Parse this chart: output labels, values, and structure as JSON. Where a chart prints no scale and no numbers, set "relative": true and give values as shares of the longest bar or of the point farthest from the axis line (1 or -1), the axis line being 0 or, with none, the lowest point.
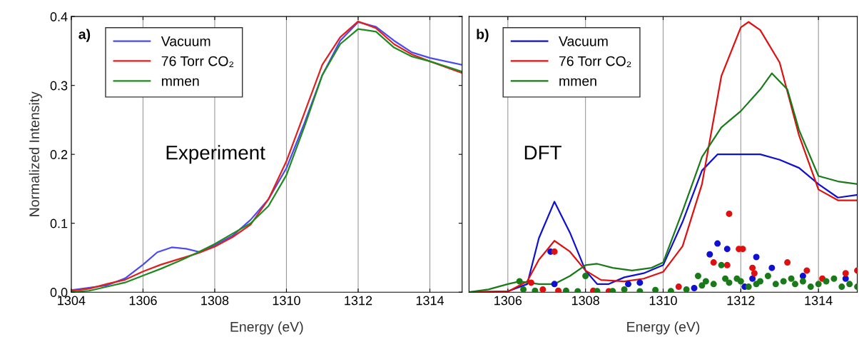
{
  "chart_data": [
    {
      "type": "line",
      "xlabel": "Energy (eV)",
      "ylabel": "Normalized Intensity",
      "annotations": [
        "a)",
        "Experiment"
      ],
      "xlim": [
        1304,
        1314.9
      ],
      "ylim": [
        0,
        0.4
      ],
      "xticks": [
        1304,
        1306,
        1308,
        1310,
        1312,
        1314
      ],
      "yticks": [
        {
          "value": 0,
          "label": "0.0"
        },
        0.1,
        0.2,
        0.3,
        0.4
      ],
      "grid": "x",
      "legend": "top left",
      "series": [
        {
          "name": "Vacuum",
          "color": "#4b4bf0",
          "x": [
            1304,
            1305,
            1305.5,
            1306,
            1306.4,
            1306.8,
            1307.2,
            1307.6,
            1308,
            1308.5,
            1309,
            1309.5,
            1310,
            1310.5,
            1311,
            1311.5,
            1312,
            1312.5,
            1313,
            1313.5,
            1314,
            1314.9
          ],
          "values": [
            0.003,
            0.01,
            0.02,
            0.04,
            0.058,
            0.065,
            0.063,
            0.058,
            0.068,
            0.082,
            0.105,
            0.135,
            0.18,
            0.245,
            0.315,
            0.365,
            0.392,
            0.385,
            0.365,
            0.348,
            0.34,
            0.33
          ]
        },
        {
          "name": "76 Torr CO₂",
          "color": "#e02020",
          "x": [
            1304,
            1304.5,
            1305,
            1305.5,
            1306,
            1306.5,
            1307,
            1307.5,
            1308,
            1308.5,
            1309,
            1309.5,
            1310,
            1310.5,
            1311,
            1311.5,
            1312,
            1312.5,
            1313,
            1313.5,
            1314,
            1314.9
          ],
          "values": [
            0.002,
            0.005,
            0.012,
            0.018,
            0.03,
            0.04,
            0.048,
            0.056,
            0.066,
            0.08,
            0.098,
            0.135,
            0.19,
            0.26,
            0.33,
            0.37,
            0.393,
            0.383,
            0.36,
            0.345,
            0.335,
            0.318
          ]
        },
        {
          "name": "mmen",
          "color": "#1f8a1f",
          "x": [
            1304,
            1304.5,
            1305,
            1305.5,
            1306,
            1306.5,
            1307,
            1307.5,
            1308,
            1308.5,
            1309,
            1309.5,
            1310,
            1310.5,
            1311,
            1311.5,
            1312,
            1312.5,
            1313,
            1313.5,
            1314,
            1314.9
          ],
          "values": [
            0.0,
            0.002,
            0.008,
            0.014,
            0.024,
            0.034,
            0.045,
            0.057,
            0.07,
            0.085,
            0.1,
            0.125,
            0.17,
            0.24,
            0.315,
            0.36,
            0.382,
            0.378,
            0.355,
            0.342,
            0.335,
            0.32
          ]
        }
      ]
    },
    {
      "type": "line",
      "xlabel": "Energy (eV)",
      "annotations": [
        "b)",
        "DFT"
      ],
      "relative": true,
      "xlim": [
        1305,
        1315
      ],
      "xticks": [
        1306,
        1308,
        1310,
        1312,
        1314
      ],
      "grid": "x",
      "legend": "top left",
      "tick_labels": "x",
      "series": [
        {
          "name": "Vacuum",
          "color": "#1010d0",
          "x": [
            1305,
            1306,
            1306.5,
            1306.8,
            1307.2,
            1307.6,
            1308,
            1308.3,
            1308.6,
            1309,
            1309.5,
            1310,
            1310.5,
            1311,
            1311.4,
            1312,
            1312.5,
            1313,
            1313.5,
            1314,
            1314.5,
            1315
          ],
          "values": [
            0,
            0.003,
            0.03,
            0.2,
            0.335,
            0.22,
            0.08,
            0.03,
            0.03,
            0.055,
            0.07,
            0.1,
            0.26,
            0.45,
            0.51,
            0.51,
            0.51,
            0.49,
            0.46,
            0.4,
            0.35,
            0.36
          ]
        },
        {
          "name": "76 Torr CO₂",
          "color": "#e01010",
          "x": [
            1305,
            1306,
            1306.5,
            1306.8,
            1307.2,
            1307.6,
            1308,
            1308.4,
            1309,
            1309.5,
            1310,
            1310.5,
            1311,
            1311.5,
            1312,
            1312.2,
            1312.5,
            1313,
            1313.5,
            1314,
            1314.5,
            1315
          ],
          "values": [
            0,
            0.002,
            0.04,
            0.12,
            0.19,
            0.15,
            0.08,
            0.045,
            0.04,
            0.05,
            0.075,
            0.17,
            0.4,
            0.8,
            0.98,
            1.0,
            0.97,
            0.85,
            0.58,
            0.38,
            0.34,
            0.34
          ]
        },
        {
          "name": "mmen",
          "color": "#1a7a1a",
          "x": [
            1305,
            1305.5,
            1306,
            1306.3,
            1306.8,
            1307.2,
            1307.6,
            1308,
            1308.3,
            1308.7,
            1309.2,
            1309.7,
            1310,
            1310.5,
            1311,
            1311.5,
            1312,
            1312.5,
            1312.8,
            1313.2,
            1313.5,
            1314,
            1314.5,
            1315
          ],
          "values": [
            0,
            0.01,
            0.03,
            0.04,
            0.03,
            0.03,
            0.06,
            0.1,
            0.105,
            0.09,
            0.08,
            0.09,
            0.11,
            0.3,
            0.5,
            0.61,
            0.67,
            0.75,
            0.81,
            0.75,
            0.6,
            0.43,
            0.41,
            0.4
          ]
        },
        {
          "type": "scatter",
          "color": "#1010d0",
          "x": [
            1307.1,
            1307.2,
            1309.1,
            1309.4,
            1310.6,
            1310.8,
            1311.2,
            1311.4,
            1311.65,
            1312.1,
            1312.3,
            1312.4,
            1312.8,
            1313.6,
            1314.7
          ],
          "values": [
            0.15,
            0.03,
            0.03,
            0.035,
            null,
            0.015,
            0.14,
            0.18,
            0.16,
            0.02,
            0.05,
            0.13,
            0.09,
            0.06,
            0.05
          ]
        },
        {
          "type": "scatter",
          "color": "#e01010",
          "x": [
            1306.6,
            1306.9,
            1307.2,
            1307.3,
            1308.2,
            1308.6,
            1310.4,
            1311.3,
            1311.65,
            1311.7,
            1311.95,
            1312.05,
            1312.3,
            1312.35,
            1313.2,
            1313.7,
            1314.1,
            1314.2,
            1314.7,
            1315
          ],
          "values": [
            0.035,
            0.01,
            0.15,
            0.005,
            0.005,
            0.003,
            0.02,
            0.11,
            0.1,
            0.29,
            0.16,
            0.16,
            0.09,
            0.07,
            0.11,
            0.08,
            0.05,
            null,
            0.07,
            0.08
          ]
        },
        {
          "type": "scatter",
          "color": "#1a7a1a",
          "x": [
            1306.3,
            1306.4,
            1306.7,
            1307.5,
            1307.8,
            1308.0,
            1308.3,
            1308.7,
            1309.0,
            1309.4,
            1309.8,
            1310.2,
            1310.6,
            1310.9,
            1311.0,
            1311.1,
            1311.3,
            1311.5,
            1311.6,
            1311.7,
            1311.9,
            1312.0,
            1312.2,
            1312.4,
            1312.5,
            1312.7,
            1312.9,
            1313.1,
            1313.3,
            1313.4,
            1313.6,
            1313.8,
            1314.0,
            1314.2,
            1314.4,
            1314.6,
            1314.8,
            1315.0
          ],
          "values": [
            0.04,
            0.01,
            0.005,
            0.005,
            0.003,
            0.06,
            0.004,
            0.004,
            0.01,
            0.003,
            0.008,
            0.004,
            0.01,
            0.06,
            0.025,
            0.04,
            0.03,
            0.1,
            0.05,
            0.035,
            0.05,
            0.04,
            0.02,
            0.03,
            0.04,
            0.06,
            0.03,
            0.04,
            0.05,
            0.03,
            0.04,
            0.02,
            0.03,
            0.04,
            0.05,
            0.02,
            0.03,
            0.02
          ]
        }
      ]
    }
  ]
}
